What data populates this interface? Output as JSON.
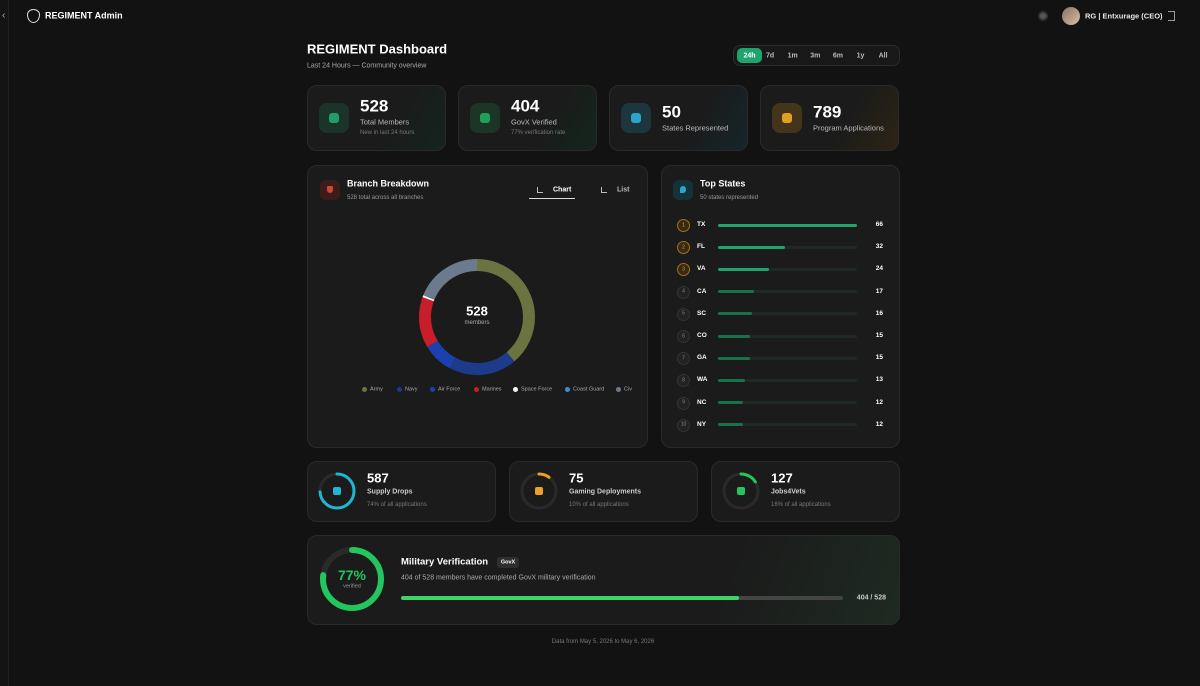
{
  "header": {
    "brand": "REGIMENT Admin",
    "user": "RG | Entxurage (CEO)"
  },
  "dashboard": {
    "title": "REGIMENT Dashboard",
    "subtitle": "Last 24 Hours — Community overview"
  },
  "range": {
    "options": [
      "24h",
      "7d",
      "1m",
      "3m",
      "6m",
      "1y",
      "All"
    ],
    "active": "24h"
  },
  "stats": [
    {
      "value": 528,
      "label": "Total Members",
      "note": "New in last 24 hours",
      "color": "#1f9d6a"
    },
    {
      "value": 404,
      "label": "GovX Verified",
      "note": "77% verification rate",
      "color": "#22a05a"
    },
    {
      "value": 50,
      "label": "States Represented",
      "color": "#2aa4c8"
    },
    {
      "value": 789,
      "label": "Program Applications",
      "color": "#e0a020"
    }
  ],
  "branch": {
    "title": "Branch Breakdown",
    "subtitle": "528 total across all branches",
    "tabs": [
      "Chart",
      "List"
    ],
    "active_tab": "Chart",
    "center_value": 528,
    "center_label": "members",
    "segments": [
      {
        "name": "Army",
        "value": 205,
        "color": "#6b7340"
      },
      {
        "name": "Navy",
        "value": 100,
        "color": "#1e3a8a"
      },
      {
        "name": "Air Force",
        "value": 45,
        "color": "#1d40b0"
      },
      {
        "name": "Marines",
        "value": 75,
        "color": "#c81e2a"
      },
      {
        "name": "Space Force",
        "value": 3,
        "color": "#f5f5f5"
      },
      {
        "name": "Coast Guard",
        "value": 0,
        "color": "#3b8fd6"
      },
      {
        "name": "Civ",
        "value": 100,
        "color": "#6b7a8c"
      }
    ]
  },
  "top_states": {
    "title": "Top States",
    "subtitle": "50 states represented",
    "rows": [
      {
        "rank": 1,
        "state": "TX",
        "value": 66
      },
      {
        "rank": 2,
        "state": "FL",
        "value": 32
      },
      {
        "rank": 3,
        "state": "VA",
        "value": 24
      },
      {
        "rank": 4,
        "state": "CA",
        "value": 17
      },
      {
        "rank": 5,
        "state": "SC",
        "value": 16
      },
      {
        "rank": 6,
        "state": "CO",
        "value": 15
      },
      {
        "rank": 7,
        "state": "GA",
        "value": 15
      },
      {
        "rank": 8,
        "state": "WA",
        "value": 13
      },
      {
        "rank": 9,
        "state": "NC",
        "value": 12
      },
      {
        "rank": 10,
        "state": "NY",
        "value": 12
      }
    ]
  },
  "programs": [
    {
      "value": 587,
      "label": "Supply Drops",
      "note": "74% of all applications",
      "share": 74,
      "color": "#1fb6d4"
    },
    {
      "value": 75,
      "label": "Gaming Deployments",
      "note": "10% of all applications",
      "share": 10,
      "color": "#f0a020"
    },
    {
      "value": 127,
      "label": "Jobs4Vets",
      "note": "16% of all applications",
      "share": 16,
      "color": "#22c55e"
    }
  ],
  "verification": {
    "title": "Military Verification",
    "badge": "GovX",
    "percent": 77,
    "percent_label": "77%",
    "percent_caption": "verified",
    "description": "404 of 528 members have completed GovX military verification",
    "verified": 404,
    "total": 528,
    "progress_label": "404 / 528"
  },
  "footer": "Data from May 5, 2026 to May 6, 2026"
}
